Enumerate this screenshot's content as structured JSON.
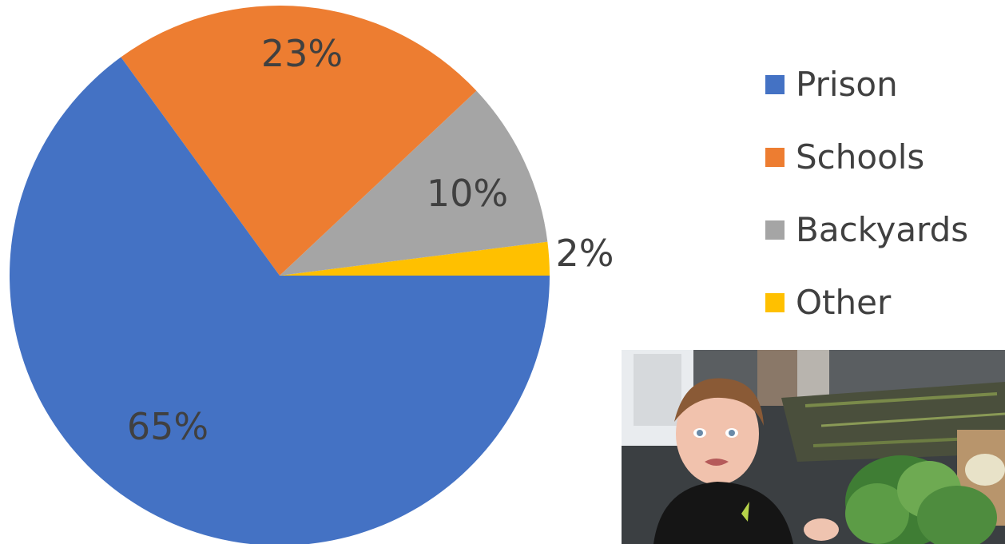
{
  "chart_data": {
    "type": "pie",
    "title": "",
    "categories": [
      "Prison",
      "Schools",
      "Backyards",
      "Other"
    ],
    "values": [
      65,
      23,
      10,
      2
    ],
    "labels": [
      "65%",
      "23%",
      "10%",
      "2%"
    ],
    "colors": [
      "#4472C4",
      "#ED7D31",
      "#A5A5A5",
      "#FFC000"
    ],
    "legend": {
      "position": "right"
    }
  }
}
